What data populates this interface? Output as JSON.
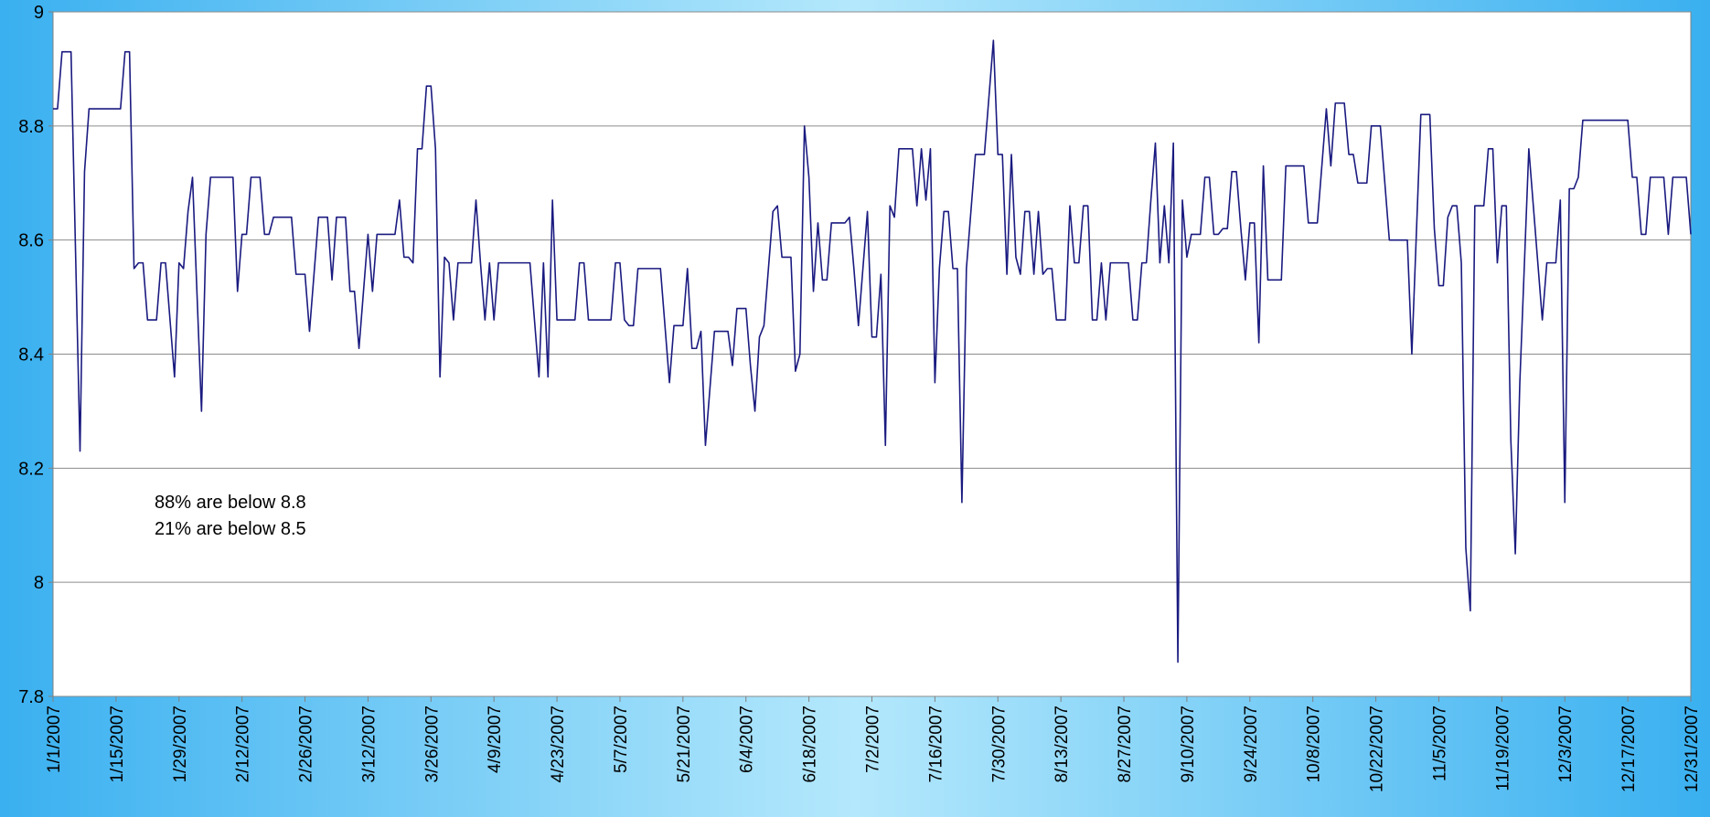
{
  "chart_data": {
    "type": "line",
    "annotations": [
      "88% are below 8.8",
      "21% are below 8.5"
    ],
    "xlim": [
      "1/1/2007",
      "12/31/2007"
    ],
    "xticks": [
      "1/1/2007",
      "1/15/2007",
      "1/29/2007",
      "2/12/2007",
      "2/26/2007",
      "3/12/2007",
      "3/26/2007",
      "4/9/2007",
      "4/23/2007",
      "5/7/2007",
      "5/21/2007",
      "6/4/2007",
      "6/18/2007",
      "7/2/2007",
      "7/16/2007",
      "7/30/2007",
      "8/13/2007",
      "8/27/2007",
      "9/10/2007",
      "9/24/2007",
      "10/8/2007",
      "10/22/2007",
      "11/5/2007",
      "11/19/2007",
      "12/3/2007",
      "12/17/2007",
      "12/31/2007"
    ],
    "ylim": [
      7.8,
      9
    ],
    "yticks": [
      7.8,
      8,
      8.2,
      8.4,
      8.6,
      8.8,
      9
    ],
    "grid": true,
    "x": [
      "1/1/2007",
      "1/2/2007",
      "1/3/2007",
      "1/5/2007",
      "1/7/2007",
      "1/8/2007",
      "1/9/2007",
      "1/16/2007",
      "1/17/2007",
      "1/18/2007",
      "1/19/2007",
      "1/20/2007",
      "1/21/2007",
      "1/22/2007",
      "1/24/2007",
      "1/25/2007",
      "1/26/2007",
      "1/28/2007",
      "1/29/2007",
      "1/30/2007",
      "1/31/2007",
      "2/1/2007",
      "2/3/2007",
      "2/4/2007",
      "2/5/2007",
      "2/10/2007",
      "2/11/2007",
      "2/12/2007",
      "2/13/2007",
      "2/14/2007",
      "2/16/2007",
      "2/17/2007",
      "2/18/2007",
      "2/19/2007",
      "2/23/2007",
      "2/24/2007",
      "2/26/2007",
      "2/27/2007",
      "3/1/2007",
      "3/3/2007",
      "3/4/2007",
      "3/5/2007",
      "3/7/2007",
      "3/8/2007",
      "3/9/2007",
      "3/10/2007",
      "3/12/2007",
      "3/13/2007",
      "3/14/2007",
      "3/18/2007",
      "3/19/2007",
      "3/20/2007",
      "3/21/2007",
      "3/22/2007",
      "3/23/2007",
      "3/24/2007",
      "3/25/2007",
      "3/26/2007",
      "3/27/2007",
      "3/28/2007",
      "3/29/2007",
      "3/30/2007",
      "3/31/2007",
      "4/1/2007",
      "4/4/2007",
      "4/5/2007",
      "4/6/2007",
      "4/7/2007",
      "4/8/2007",
      "4/9/2007",
      "4/10/2007",
      "4/17/2007",
      "4/19/2007",
      "4/20/2007",
      "4/21/2007",
      "4/22/2007",
      "4/23/2007",
      "4/27/2007",
      "4/28/2007",
      "4/29/2007",
      "4/30/2007",
      "5/5/2007",
      "5/6/2007",
      "5/7/2007",
      "5/8/2007",
      "5/9/2007",
      "5/10/2007",
      "5/11/2007",
      "5/16/2007",
      "5/18/2007",
      "5/19/2007",
      "5/21/2007",
      "5/22/2007",
      "5/23/2007",
      "5/24/2007",
      "5/25/2007",
      "5/26/2007",
      "5/28/2007",
      "5/31/2007",
      "6/1/2007",
      "6/2/2007",
      "6/4/2007",
      "6/5/2007",
      "6/6/2007",
      "6/7/2007",
      "6/8/2007",
      "6/10/2007",
      "6/11/2007",
      "6/12/2007",
      "6/14/2007",
      "6/15/2007",
      "6/16/2007",
      "6/17/2007",
      "6/18/2007",
      "6/19/2007",
      "6/20/2007",
      "6/21/2007",
      "6/22/2007",
      "6/23/2007",
      "6/26/2007",
      "6/27/2007",
      "6/28/2007",
      "6/29/2007",
      "6/30/2007",
      "7/1/2007",
      "7/2/2007",
      "7/3/2007",
      "7/4/2007",
      "7/5/2007",
      "7/6/2007",
      "7/7/2007",
      "7/8/2007",
      "7/11/2007",
      "7/12/2007",
      "7/13/2007",
      "7/14/2007",
      "7/15/2007",
      "7/16/2007",
      "7/17/2007",
      "7/18/2007",
      "7/19/2007",
      "7/20/2007",
      "7/21/2007",
      "7/22/2007",
      "7/23/2007",
      "7/24/2007",
      "7/25/2007",
      "7/27/2007",
      "7/29/2007",
      "7/30/2007",
      "7/31/2007",
      "8/1/2007",
      "8/2/2007",
      "8/3/2007",
      "8/4/2007",
      "8/5/2007",
      "8/6/2007",
      "8/7/2007",
      "8/8/2007",
      "8/9/2007",
      "8/10/2007",
      "8/11/2007",
      "8/12/2007",
      "8/14/2007",
      "8/15/2007",
      "8/16/2007",
      "8/17/2007",
      "8/18/2007",
      "8/19/2007",
      "8/20/2007",
      "8/21/2007",
      "8/22/2007",
      "8/23/2007",
      "8/24/2007",
      "8/28/2007",
      "8/29/2007",
      "8/30/2007",
      "8/31/2007",
      "9/1/2007",
      "9/2/2007",
      "9/3/2007",
      "9/4/2007",
      "9/5/2007",
      "9/6/2007",
      "9/7/2007",
      "9/8/2007",
      "9/9/2007",
      "9/10/2007",
      "9/11/2007",
      "9/13/2007",
      "9/14/2007",
      "9/15/2007",
      "9/16/2007",
      "9/17/2007",
      "9/18/2007",
      "9/19/2007",
      "9/20/2007",
      "9/21/2007",
      "9/22/2007",
      "9/23/2007",
      "9/24/2007",
      "9/25/2007",
      "9/26/2007",
      "9/27/2007",
      "9/28/2007",
      "10/1/2007",
      "10/2/2007",
      "10/6/2007",
      "10/7/2007",
      "10/9/2007",
      "10/10/2007",
      "10/11/2007",
      "10/12/2007",
      "10/13/2007",
      "10/15/2007",
      "10/16/2007",
      "10/17/2007",
      "10/18/2007",
      "10/20/2007",
      "10/21/2007",
      "10/23/2007",
      "10/25/2007",
      "10/29/2007",
      "10/30/2007",
      "11/1/2007",
      "11/3/2007",
      "11/4/2007",
      "11/5/2007",
      "11/6/2007",
      "11/7/2007",
      "11/8/2007",
      "11/9/2007",
      "11/10/2007",
      "11/11/2007",
      "11/12/2007",
      "11/13/2007",
      "11/15/2007",
      "11/16/2007",
      "11/17/2007",
      "11/18/2007",
      "11/19/2007",
      "11/20/2007",
      "11/21/2007",
      "11/22/2007",
      "11/23/2007",
      "11/25/2007",
      "11/26/2007",
      "11/27/2007",
      "11/28/2007",
      "11/29/2007",
      "12/1/2007",
      "12/2/2007",
      "12/3/2007",
      "12/4/2007",
      "12/5/2007",
      "12/6/2007",
      "12/7/2007",
      "12/17/2007",
      "12/18/2007",
      "12/19/2007",
      "12/20/2007",
      "12/21/2007",
      "12/22/2007",
      "12/25/2007",
      "12/26/2007",
      "12/27/2007",
      "12/30/2007",
      "12/31/2007"
    ],
    "series": [
      {
        "color": "#1a1a80",
        "values": [
          8.83,
          8.83,
          8.93,
          8.93,
          8.23,
          8.72,
          8.83,
          8.83,
          8.93,
          8.93,
          8.55,
          8.56,
          8.56,
          8.46,
          8.46,
          8.56,
          8.56,
          8.36,
          8.56,
          8.55,
          8.65,
          8.71,
          8.3,
          8.61,
          8.71,
          8.71,
          8.51,
          8.61,
          8.61,
          8.71,
          8.71,
          8.61,
          8.61,
          8.64,
          8.64,
          8.54,
          8.54,
          8.44,
          8.64,
          8.64,
          8.53,
          8.64,
          8.64,
          8.51,
          8.51,
          8.41,
          8.61,
          8.51,
          8.61,
          8.61,
          8.67,
          8.57,
          8.57,
          8.56,
          8.76,
          8.76,
          8.87,
          8.87,
          8.76,
          8.36,
          8.57,
          8.56,
          8.46,
          8.56,
          8.56,
          8.67,
          8.56,
          8.46,
          8.56,
          8.46,
          8.56,
          8.56,
          8.36,
          8.56,
          8.36,
          8.67,
          8.46,
          8.46,
          8.56,
          8.56,
          8.46,
          8.46,
          8.56,
          8.56,
          8.46,
          8.45,
          8.45,
          8.55,
          8.55,
          8.35,
          8.45,
          8.45,
          8.55,
          8.41,
          8.41,
          8.44,
          8.24,
          8.44,
          8.44,
          8.38,
          8.48,
          8.48,
          8.38,
          8.3,
          8.43,
          8.45,
          8.65,
          8.66,
          8.57,
          8.57,
          8.37,
          8.4,
          8.8,
          8.71,
          8.51,
          8.63,
          8.53,
          8.53,
          8.63,
          8.63,
          8.64,
          8.55,
          8.45,
          8.55,
          8.65,
          8.43,
          8.43,
          8.54,
          8.24,
          8.66,
          8.64,
          8.76,
          8.76,
          8.66,
          8.76,
          8.67,
          8.76,
          8.35,
          8.55,
          8.65,
          8.65,
          8.55,
          8.55,
          8.14,
          8.55,
          8.65,
          8.75,
          8.75,
          8.95,
          8.75,
          8.75,
          8.54,
          8.75,
          8.57,
          8.54,
          8.65,
          8.65,
          8.54,
          8.65,
          8.54,
          8.55,
          8.55,
          8.46,
          8.46,
          8.66,
          8.56,
          8.56,
          8.66,
          8.66,
          8.46,
          8.46,
          8.56,
          8.46,
          8.56,
          8.56,
          8.46,
          8.46,
          8.56,
          8.56,
          8.67,
          8.77,
          8.56,
          8.66,
          8.56,
          8.77,
          7.86,
          8.67,
          8.57,
          8.61,
          8.61,
          8.71,
          8.71,
          8.61,
          8.61,
          8.62,
          8.62,
          8.72,
          8.72,
          8.62,
          8.53,
          8.63,
          8.63,
          8.42,
          8.73,
          8.53,
          8.53,
          8.73,
          8.73,
          8.63,
          8.63,
          8.73,
          8.83,
          8.73,
          8.84,
          8.84,
          8.75,
          8.75,
          8.7,
          8.7,
          8.8,
          8.8,
          8.6,
          8.6,
          8.4,
          8.82,
          8.82,
          8.62,
          8.52,
          8.52,
          8.64,
          8.66,
          8.66,
          8.56,
          8.06,
          7.95,
          8.66,
          8.66,
          8.76,
          8.76,
          8.56,
          8.66,
          8.66,
          8.25,
          8.05,
          8.35,
          8.76,
          8.66,
          8.56,
          8.46,
          8.56,
          8.56,
          8.67,
          8.14,
          8.69,
          8.69,
          8.71,
          8.81,
          8.81,
          8.71,
          8.71,
          8.61,
          8.61,
          8.71,
          8.71,
          8.61,
          8.71,
          8.71,
          8.61
        ]
      }
    ]
  }
}
